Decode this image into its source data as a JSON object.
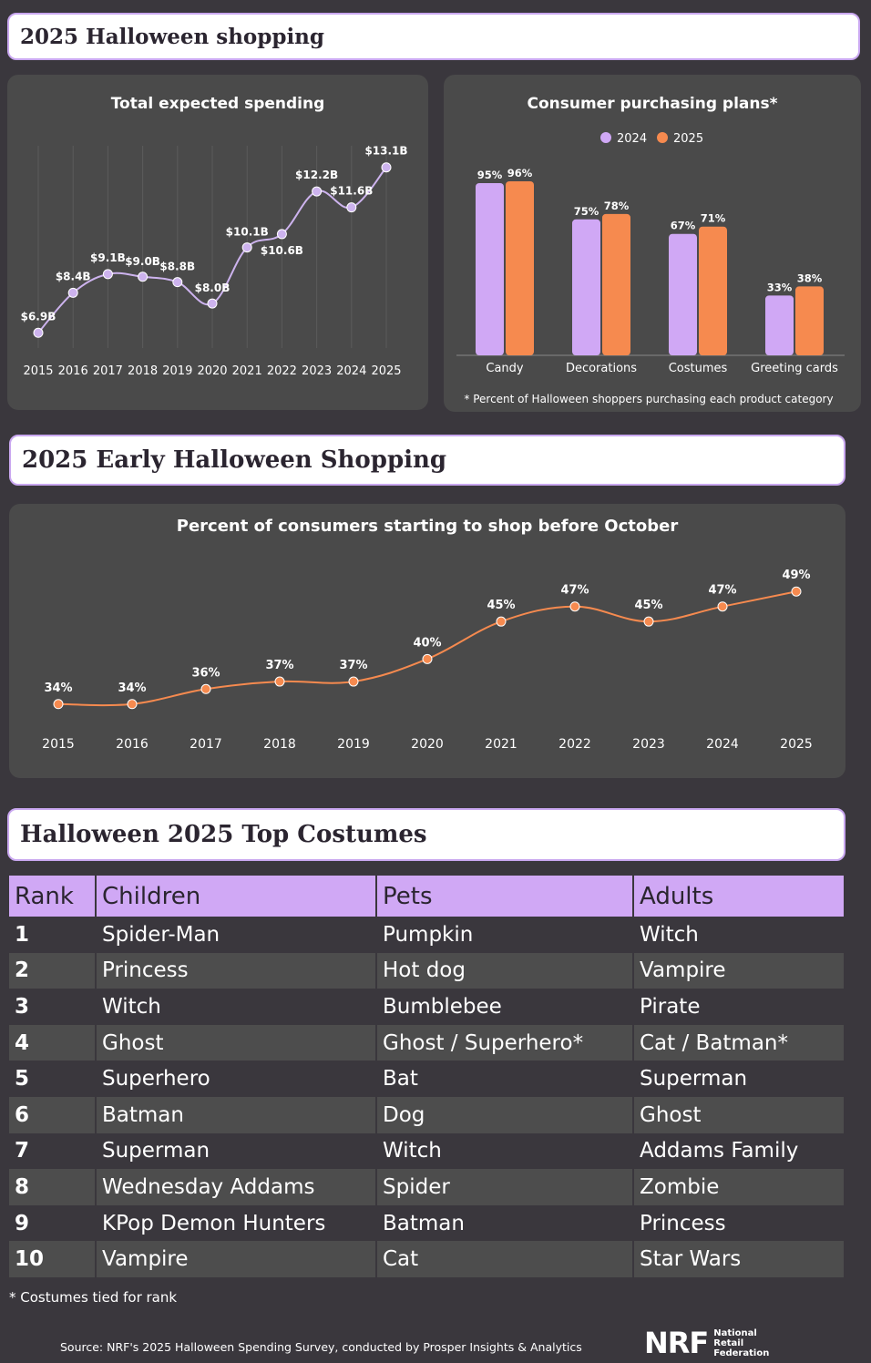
{
  "banners": {
    "top": "2025 Halloween shopping",
    "early": "2025 Early Halloween Shopping",
    "costumes": "Halloween 2025 Top Costumes"
  },
  "colors": {
    "purple": "#d0a8f5",
    "orange": "#f68a4f",
    "line_purple": "#cdb3ee",
    "line_orange": "#f68a4f"
  },
  "chart_data": [
    {
      "type": "line",
      "title": "Total expected spending",
      "x": [
        "2015",
        "2016",
        "2017",
        "2018",
        "2019",
        "2020",
        "2021",
        "2022",
        "2023",
        "2024",
        "2025"
      ],
      "values": [
        6.9,
        8.4,
        9.1,
        9.0,
        8.8,
        8.0,
        10.1,
        10.6,
        12.2,
        11.6,
        13.1
      ],
      "labels": [
        "$6.9B",
        "$8.4B",
        "$9.1B",
        "$9.0B",
        "$8.8B",
        "$8.0B",
        "$10.1B",
        "$10.6B",
        "$12.2B",
        "$11.6B",
        "$13.1B"
      ],
      "ylim": [
        6.5,
        13.5
      ],
      "grid": "vertical"
    },
    {
      "type": "bar",
      "title": "Consumer purchasing plans*",
      "categories": [
        "Candy",
        "Decorations",
        "Costumes",
        "Greeting cards"
      ],
      "series": [
        {
          "name": "2024",
          "values": [
            95,
            75,
            67,
            33
          ],
          "labels": [
            "95%",
            "75%",
            "67%",
            "33%"
          ]
        },
        {
          "name": "2025",
          "values": [
            96,
            78,
            71,
            38
          ],
          "labels": [
            "96%",
            "78%",
            "71%",
            "38%"
          ]
        }
      ],
      "ylim": [
        0,
        100
      ],
      "legend": "top-center",
      "footnote": "* Percent of Halloween shoppers purchasing each product category"
    },
    {
      "type": "line",
      "title": "Percent of consumers starting to shop before October",
      "x": [
        "2015",
        "2016",
        "2017",
        "2018",
        "2019",
        "2020",
        "2021",
        "2022",
        "2023",
        "2024",
        "2025"
      ],
      "values": [
        34,
        34,
        36,
        37,
        37,
        40,
        45,
        47,
        45,
        47,
        49
      ],
      "labels": [
        "34%",
        "34%",
        "36%",
        "37%",
        "37%",
        "40%",
        "45%",
        "47%",
        "45%",
        "47%",
        "49%"
      ],
      "ylim": [
        33,
        50
      ]
    }
  ],
  "costumes": {
    "headers": [
      "Rank",
      "Children",
      "Pets",
      "Adults"
    ],
    "rows": [
      [
        "1",
        "Spider-Man",
        "Pumpkin",
        "Witch"
      ],
      [
        "2",
        "Princess",
        "Hot dog",
        "Vampire"
      ],
      [
        "3",
        "Witch",
        "Bumblebee",
        "Pirate"
      ],
      [
        "4",
        "Ghost",
        "Ghost / Superhero*",
        "Cat / Batman*"
      ],
      [
        "5",
        "Superhero",
        "Bat",
        "Superman"
      ],
      [
        "6",
        "Batman",
        "Dog",
        "Ghost"
      ],
      [
        "7",
        "Superman",
        "Witch",
        "Addams Family"
      ],
      [
        "8",
        "Wednesday Addams",
        "Spider",
        "Zombie"
      ],
      [
        "9",
        "KPop Demon Hunters",
        "Batman",
        "Princess"
      ],
      [
        "10",
        "Vampire",
        "Cat",
        "Star Wars"
      ]
    ],
    "note": "* Costumes tied for rank"
  },
  "footer": {
    "source": "Source: NRF's 2025 Halloween Spending Survey, conducted by Prosper Insights & Analytics",
    "logo_text": "NRF",
    "logo_sub": [
      "National",
      "Retail",
      "Federation"
    ]
  }
}
